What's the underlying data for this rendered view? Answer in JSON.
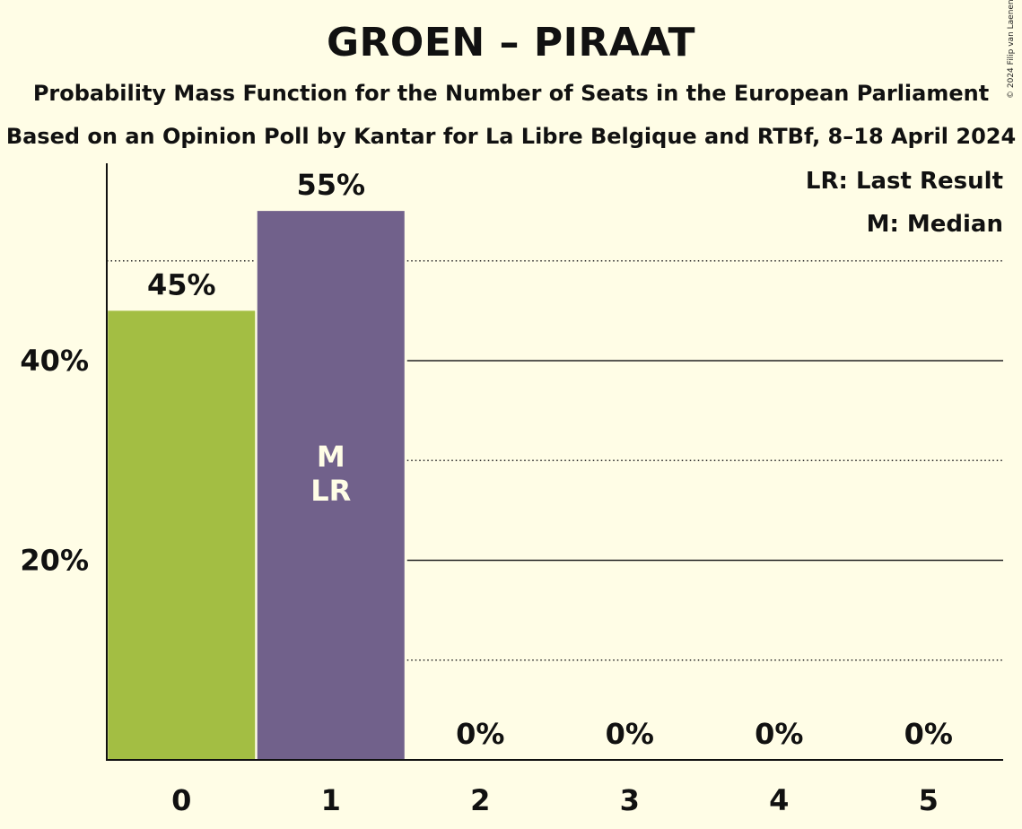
{
  "title": "GROEN – PIRAAT",
  "subtitle1": "Probability Mass Function for the Number of Seats in the European Parliament",
  "subtitle2": "Based on an Opinion Poll by Kantar for La Libre Belgique and RTBf, 8–18 April 2024",
  "copyright": "© 2024 Filip van Laenen",
  "legend": [
    "LR: Last Result",
    "M: Median"
  ],
  "colors": {
    "party": "#a3be43",
    "last_result": "#71618b",
    "background": "#fffde6",
    "marker_text": "#fffde6"
  },
  "chart_data": {
    "type": "bar",
    "categories": [
      "0",
      "1",
      "2",
      "3",
      "4",
      "5"
    ],
    "values": [
      45,
      55,
      0,
      0,
      0,
      0
    ],
    "value_labels": [
      "45%",
      "55%",
      "0%",
      "0%",
      "0%",
      "0%"
    ],
    "bar_colors": [
      "#a3be43",
      "#71618b",
      "#a3be43",
      "#a3be43",
      "#a3be43",
      "#a3be43"
    ],
    "ylim": [
      0,
      60
    ],
    "yticks": [
      20,
      40
    ],
    "ytick_labels": [
      "20%",
      "40%"
    ],
    "minor_gridlines": [
      10,
      30,
      50
    ],
    "median_index": 1,
    "last_result_index": 1,
    "median_marker": "M",
    "last_result_marker": "LR",
    "xlabel": "",
    "ylabel": ""
  }
}
